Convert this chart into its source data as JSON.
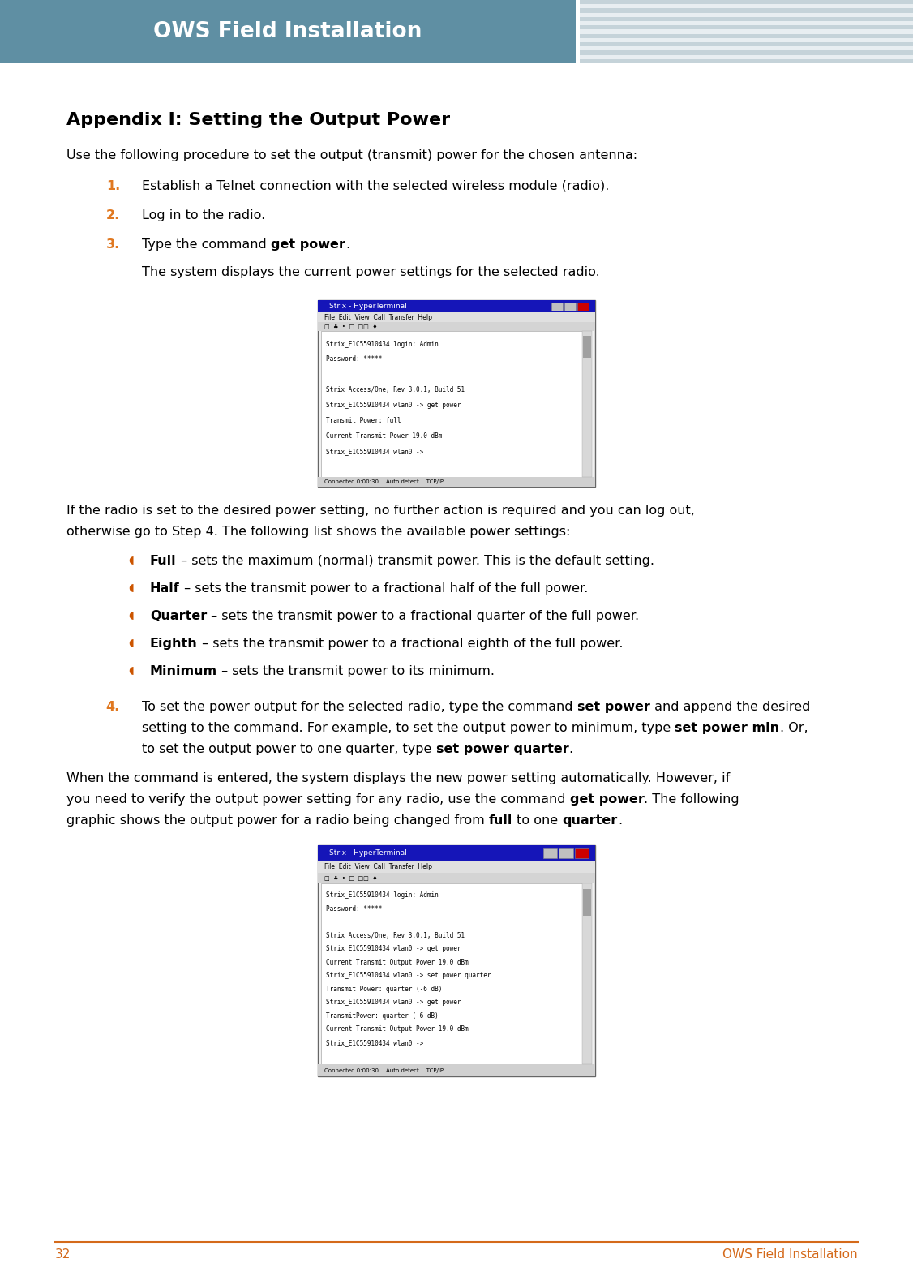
{
  "page_width": 11.26,
  "page_height": 15.73,
  "dpi": 100,
  "bg_color": "#ffffff",
  "header_bg_color": "#5f8fa3",
  "header_text": "OWS Field Installation",
  "header_text_color": "#ffffff",
  "footer_line_color": "#d46a1a",
  "footer_page_num": "32",
  "footer_text": "OWS Field Installation",
  "footer_text_color": "#d4691a",
  "title": "Appendix I: Setting the Output Power",
  "title_color": "#000000",
  "body_color": "#000000",
  "orange_color": "#e07820",
  "intro_text": "Use the following procedure to set the output (transmit) power for the chosen antenna:",
  "step1_text": "Establish a Telnet connection with the selected wireless module (radio).",
  "step2_text": "Log in to the radio.",
  "step3_pre": "Type the command ",
  "step3_bold": "get power",
  "step3_post": ".",
  "after_step3": "The system displays the current power settings for the selected radio.",
  "after_img1_line1": "If the radio is set to the desired power setting, no further action is required and you can log out,",
  "after_img1_line2": "otherwise go to Step 4. The following list shows the available power settings:",
  "bullet_items": [
    {
      "bold": "Full",
      "rest": " – sets the maximum (normal) transmit power. This is the default setting."
    },
    {
      "bold": "Half",
      "rest": " – sets the transmit power to a fractional half of the full power."
    },
    {
      "bold": "Quarter",
      "rest": " – sets the transmit power to a fractional quarter of the full power."
    },
    {
      "bold": "Eighth",
      "rest": " – sets the transmit power to a fractional eighth of the full power."
    },
    {
      "bold": "Minimum",
      "rest": " – sets the transmit power to its minimum."
    }
  ],
  "step4_line1_pre": "To set the power output for the selected radio, type the command ",
  "step4_line1_bold": "set power",
  "step4_line1_post": " and append the desired",
  "step4_line2_pre": "setting to the command. For example, to set the output power to minimum, type ",
  "step4_line2_bold": "set power min",
  "step4_line2_post": ". Or,",
  "step4_line3_pre": "to set the output power to one quarter, type ",
  "step4_line3_bold": "set power quarter",
  "step4_line3_post": ".",
  "after4_line1": "When the command is entered, the system displays the new power setting automatically. However, if",
  "after4_line2_pre": "you need to verify the output power setting for any radio, use the command ",
  "after4_line2_bold": "get power",
  "after4_line2_post": ". The following",
  "after4_line3_pre": "graphic shows the output power for a radio being changed from ",
  "after4_line3_bold1": "full",
  "after4_line3_mid": " to one ",
  "after4_line3_bold2": "quarter",
  "after4_line3_post": ".",
  "terminal1_lines": [
    "Strix_E1C55910434 login: Admin",
    "Password: *****",
    "",
    "Strix Access/One, Rev 3.0.1, Build 51",
    "Strix_E1C55910434 wlan0 -> get power",
    "Transmit Power: full",
    "Current Transmit Power 19.0 dBm",
    "Strix_E1C55910434 wlan0 ->"
  ],
  "terminal2_lines": [
    "Strix_E1C55910434 login: Admin",
    "Password: *****",
    "",
    "Strix Access/One, Rev 3.0.1, Build 51",
    "Strix_E1C55910434 wlan0 -> get power",
    "Current Transmit Output Power 19.0 dBm",
    "Strix_E1C55910434 wlan0 -> set power quarter",
    "Transmit Power: quarter (-6 dB)",
    "Strix_E1C55910434 wlan0 -> get power",
    "TransmitPower: quarter (-6 dB)",
    "Current Transmit Output Power 19.0 dBm",
    "Strix_E1C55910434 wlan0 ->"
  ]
}
